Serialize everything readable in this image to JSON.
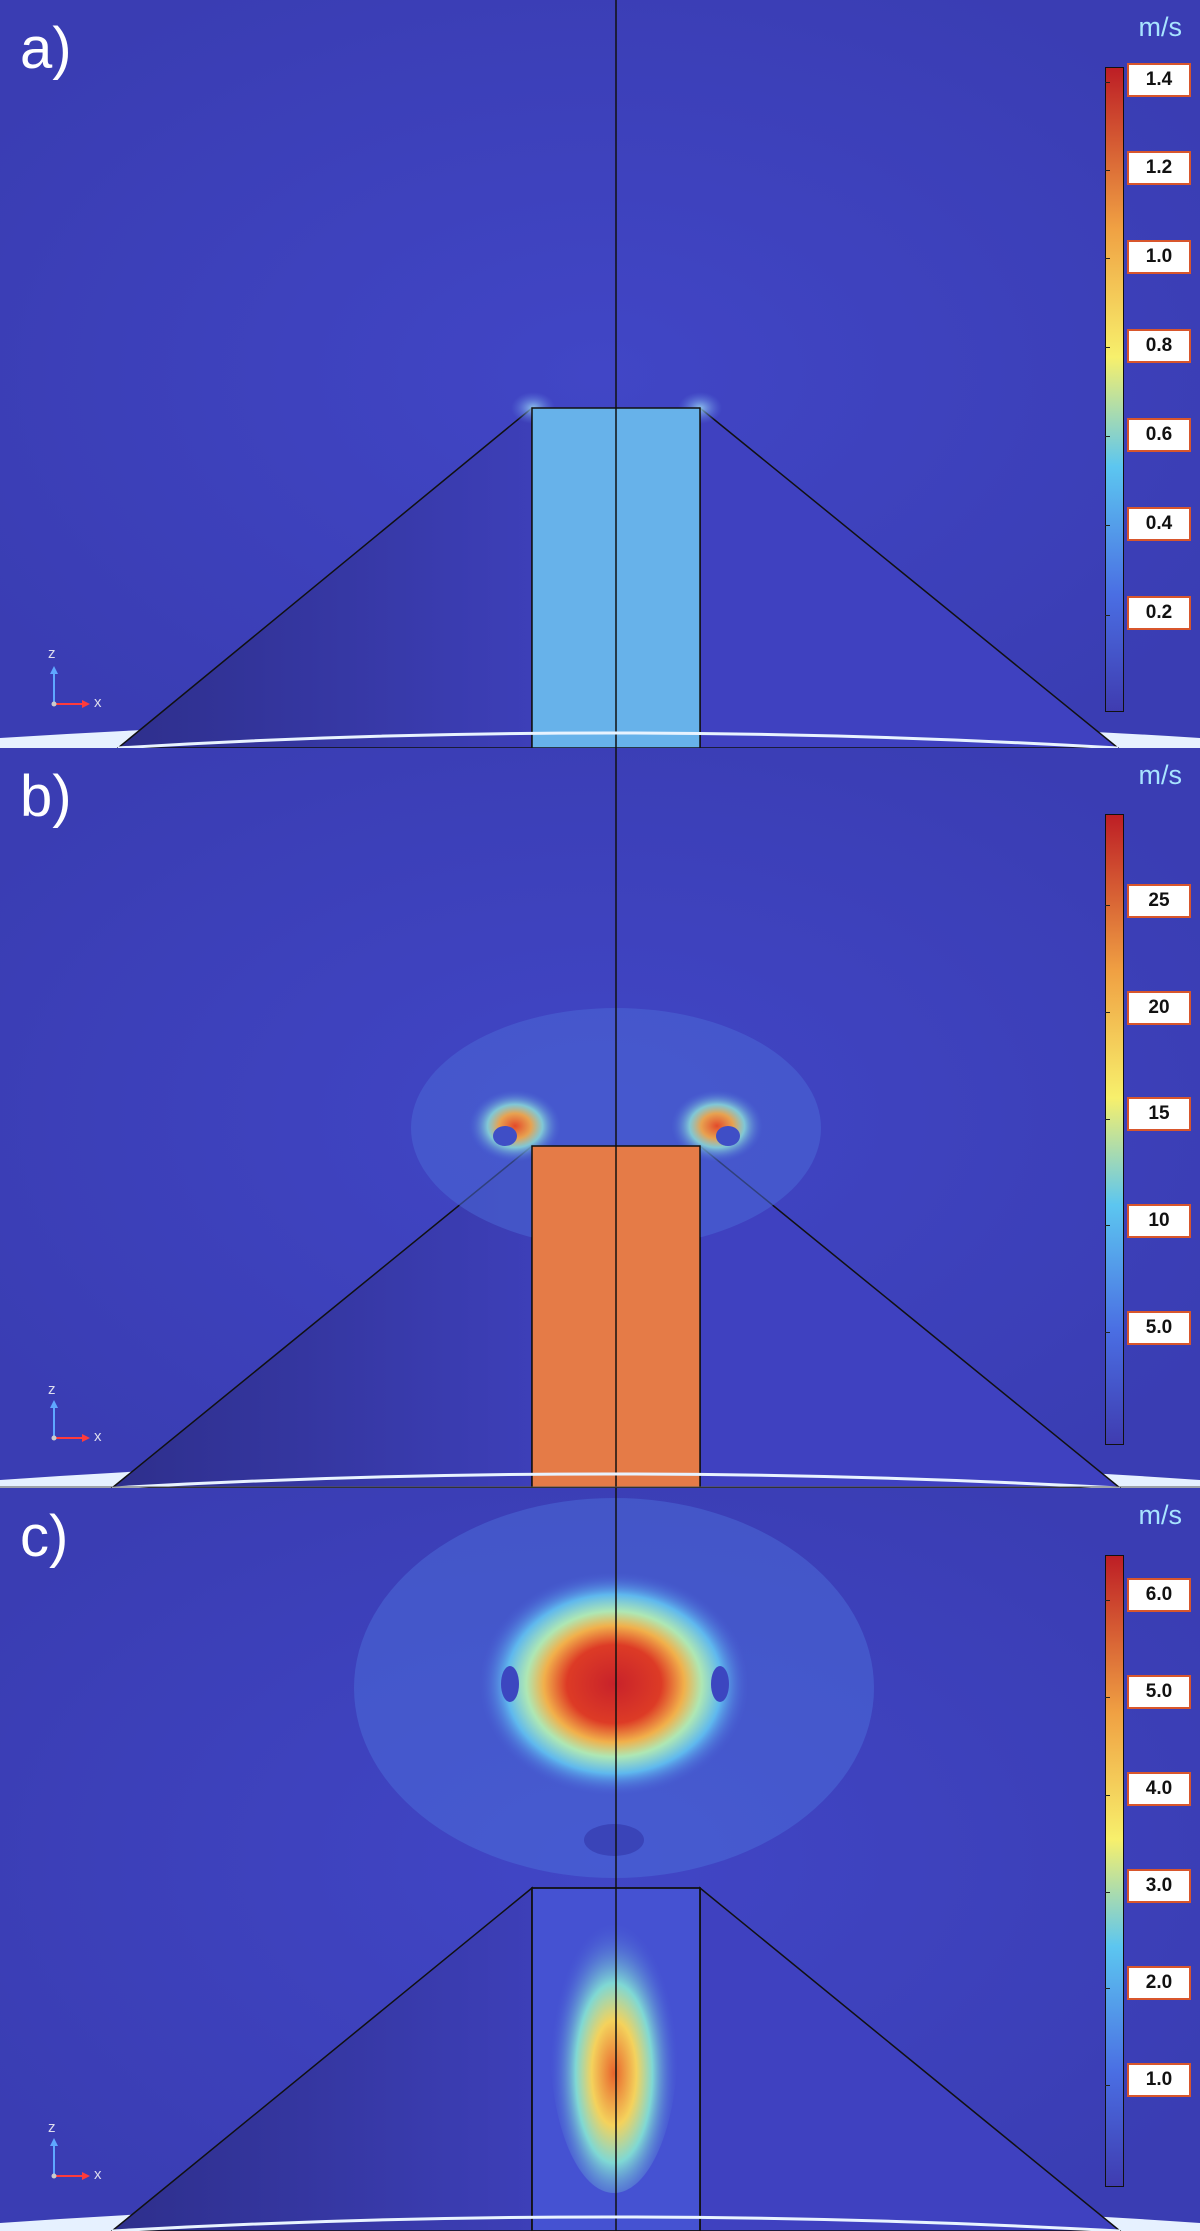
{
  "panels": [
    {
      "label": "a)",
      "unit": "m/s",
      "colorbar_ticks": [
        "1.4",
        "1.2",
        "1.0",
        "0.8",
        "0.6",
        "0.4",
        "0.2"
      ]
    },
    {
      "label": "b)",
      "unit": "m/s",
      "colorbar_ticks": [
        "25",
        "20",
        "15",
        "10",
        "5.0"
      ]
    },
    {
      "label": "c)",
      "unit": "m/s",
      "colorbar_ticks": [
        "6.0",
        "5.0",
        "4.0",
        "3.0",
        "2.0",
        "1.0"
      ]
    }
  ],
  "axis_triad": {
    "z_label": "z",
    "x_label": "x"
  },
  "colormap": [
    "#3d3fb3",
    "#4a6de3",
    "#5fc0ee",
    "#f5ee6a",
    "#f2a345",
    "#c22126"
  ]
}
